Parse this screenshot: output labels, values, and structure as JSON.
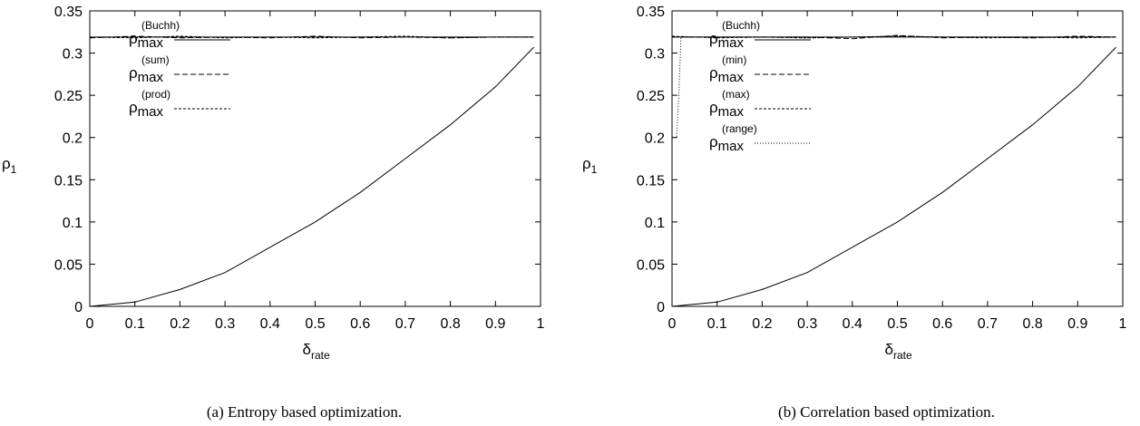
{
  "chart_data": [
    {
      "type": "line",
      "caption": "(a) Entropy based optimization.",
      "xlabel": {
        "base": "δ",
        "sub": "rate"
      },
      "ylabel": {
        "base": "ρ",
        "sub": "1"
      },
      "xlim": [
        0,
        1
      ],
      "ylim": [
        0,
        0.35
      ],
      "xticks": [
        "0",
        "0.1",
        "0.2",
        "0.3",
        "0.4",
        "0.5",
        "0.6",
        "0.7",
        "0.8",
        "0.9",
        "1"
      ],
      "yticks": [
        "0",
        "0.05",
        "0.1",
        "0.15",
        "0.2",
        "0.25",
        "0.3",
        "0.35"
      ],
      "grid": false,
      "legend_placement": "top-left",
      "series": [
        {
          "legend": {
            "base": "ρ",
            "sub": "max",
            "sup": "(Buchh)"
          },
          "style": "solid",
          "x": [
            0,
            0.1,
            0.2,
            0.3,
            0.4,
            0.5,
            0.6,
            0.7,
            0.8,
            0.9,
            0.985
          ],
          "y": [
            0.319,
            0.319,
            0.319,
            0.319,
            0.319,
            0.319,
            0.319,
            0.319,
            0.319,
            0.319,
            0.319
          ]
        },
        {
          "legend": {
            "base": "ρ",
            "sub": "max",
            "sup": "(sum)"
          },
          "style": "dashed",
          "x": [
            0,
            0.1,
            0.2,
            0.3,
            0.4,
            0.5,
            0.6,
            0.7,
            0.8,
            0.9,
            0.985
          ],
          "y": [
            0.318,
            0.32,
            0.318,
            0.319,
            0.318,
            0.32,
            0.318,
            0.319,
            0.318,
            0.319,
            0.319
          ]
        },
        {
          "legend": {
            "base": "ρ",
            "sub": "max",
            "sup": "(prod)"
          },
          "style": "dotted",
          "x": [
            0,
            0.1,
            0.2,
            0.3,
            0.4,
            0.5,
            0.6,
            0.7,
            0.8,
            0.9,
            0.985
          ],
          "y": [
            0.319,
            0.318,
            0.32,
            0.318,
            0.319,
            0.318,
            0.319,
            0.32,
            0.318,
            0.319,
            0.319
          ]
        },
        {
          "legend": null,
          "style": "solid",
          "x": [
            0,
            0.1,
            0.2,
            0.3,
            0.4,
            0.5,
            0.6,
            0.7,
            0.8,
            0.9,
            0.985
          ],
          "y": [
            0,
            0.005,
            0.02,
            0.04,
            0.07,
            0.1,
            0.135,
            0.175,
            0.215,
            0.26,
            0.307
          ]
        }
      ]
    },
    {
      "type": "line",
      "caption": "(b) Correlation based optimization.",
      "xlabel": {
        "base": "δ",
        "sub": "rate"
      },
      "ylabel": {
        "base": "ρ",
        "sub": "1"
      },
      "xlim": [
        0,
        1
      ],
      "ylim": [
        0,
        0.35
      ],
      "xticks": [
        "0",
        "0.1",
        "0.2",
        "0.3",
        "0.4",
        "0.5",
        "0.6",
        "0.7",
        "0.8",
        "0.9",
        "1"
      ],
      "yticks": [
        "0",
        "0.05",
        "0.1",
        "0.15",
        "0.2",
        "0.25",
        "0.3",
        "0.35"
      ],
      "grid": false,
      "legend_placement": "top-left",
      "series": [
        {
          "legend": {
            "base": "ρ",
            "sub": "max",
            "sup": "(Buchh)"
          },
          "style": "solid",
          "x": [
            0,
            0.1,
            0.2,
            0.3,
            0.4,
            0.5,
            0.6,
            0.7,
            0.8,
            0.9,
            0.985
          ],
          "y": [
            0.319,
            0.319,
            0.319,
            0.319,
            0.319,
            0.319,
            0.319,
            0.319,
            0.319,
            0.319,
            0.319
          ]
        },
        {
          "legend": {
            "base": "ρ",
            "sub": "max",
            "sup": "(min)"
          },
          "style": "dashed",
          "x": [
            0,
            0.1,
            0.2,
            0.3,
            0.4,
            0.5,
            0.6,
            0.7,
            0.8,
            0.9,
            0.985
          ],
          "y": [
            0.319,
            0.319,
            0.319,
            0.319,
            0.317,
            0.321,
            0.318,
            0.319,
            0.318,
            0.32,
            0.319
          ]
        },
        {
          "legend": {
            "base": "ρ",
            "sub": "max",
            "sup": "(max)"
          },
          "style": "dotted",
          "x": [
            0,
            0.1,
            0.2,
            0.3,
            0.4,
            0.5,
            0.6,
            0.7,
            0.8,
            0.9,
            0.985
          ],
          "y": [
            0.32,
            0.318,
            0.319,
            0.318,
            0.319,
            0.32,
            0.319,
            0.318,
            0.319,
            0.318,
            0.319
          ]
        },
        {
          "legend": {
            "base": "ρ",
            "sub": "max",
            "sup": "(range)"
          },
          "style": "fine-dotted",
          "x": [
            0,
            0.005,
            0.01,
            0.015,
            0.02,
            0.1,
            0.2,
            0.3,
            0.4,
            0.5,
            0.6,
            0.7,
            0.8,
            0.9,
            0.985
          ],
          "y": [
            0.2,
            0.2,
            0.2,
            0.25,
            0.319,
            0.319,
            0.319,
            0.318,
            0.319,
            0.32,
            0.319,
            0.319,
            0.318,
            0.319,
            0.319
          ]
        },
        {
          "legend": null,
          "style": "solid",
          "x": [
            0,
            0.1,
            0.2,
            0.3,
            0.4,
            0.5,
            0.6,
            0.7,
            0.8,
            0.9,
            0.985
          ],
          "y": [
            0,
            0.005,
            0.02,
            0.04,
            0.07,
            0.1,
            0.135,
            0.175,
            0.215,
            0.26,
            0.307
          ]
        }
      ]
    }
  ]
}
